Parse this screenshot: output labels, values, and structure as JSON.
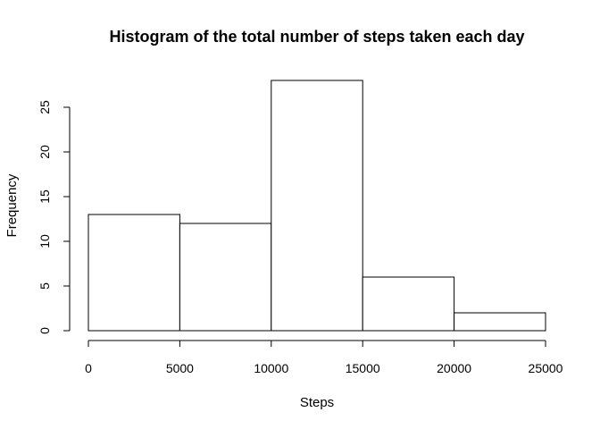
{
  "chart_data": {
    "type": "bar",
    "title": "Histogram of the total number of steps taken each day",
    "xlabel": "Steps",
    "ylabel": "Frequency",
    "bins": [
      {
        "from": 0,
        "to": 5000,
        "count": 13
      },
      {
        "from": 5000,
        "to": 10000,
        "count": 12
      },
      {
        "from": 10000,
        "to": 15000,
        "count": 28
      },
      {
        "from": 15000,
        "to": 20000,
        "count": 6
      },
      {
        "from": 20000,
        "to": 25000,
        "count": 2
      }
    ],
    "x_ticks": [
      0,
      5000,
      10000,
      15000,
      20000,
      25000
    ],
    "x_tick_labels": [
      "0",
      "5000",
      "10000",
      "15000",
      "20000",
      "25000"
    ],
    "y_ticks": [
      0,
      5,
      10,
      15,
      20,
      25
    ],
    "y_tick_labels": [
      "0",
      "5",
      "10",
      "15",
      "20",
      "25"
    ],
    "xlim": [
      0,
      25000
    ],
    "ylim": [
      0,
      28
    ],
    "grid": false,
    "legend": "none",
    "colors": {
      "bar_fill": "#ffffff",
      "bar_stroke": "#000000"
    }
  }
}
